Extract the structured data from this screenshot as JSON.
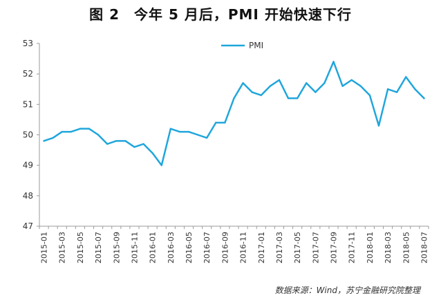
{
  "figure_title": "图 2　今年 5 月后，PMI 开始快速下行",
  "source_note": "数据来源：Wind，苏宁金融研究院整理",
  "colors": {
    "line": "#1fa6dc",
    "axis": "#999999",
    "text": "#333333"
  },
  "chart_data": {
    "type": "line",
    "title": "",
    "xlabel": "",
    "ylabel": "",
    "ylim": [
      47,
      53
    ],
    "yticks": [
      47,
      48,
      49,
      50,
      51,
      52,
      53
    ],
    "grid": false,
    "legend_position": "top-center",
    "x": [
      "2015-01",
      "2015-02",
      "2015-03",
      "2015-04",
      "2015-05",
      "2015-06",
      "2015-07",
      "2015-08",
      "2015-09",
      "2015-10",
      "2015-11",
      "2015-12",
      "2016-01",
      "2016-02",
      "2016-03",
      "2016-04",
      "2016-05",
      "2016-06",
      "2016-07",
      "2016-08",
      "2016-09",
      "2016-10",
      "2016-11",
      "2016-12",
      "2017-01",
      "2017-02",
      "2017-03",
      "2017-04",
      "2017-05",
      "2017-06",
      "2017-07",
      "2017-08",
      "2017-09",
      "2017-10",
      "2017-11",
      "2017-12",
      "2018-01",
      "2018-02",
      "2018-03",
      "2018-04",
      "2018-05",
      "2018-06",
      "2018-07"
    ],
    "tick_labels": [
      "2015-01",
      "2015-03",
      "2015-05",
      "2015-07",
      "2015-09",
      "2015-11",
      "2016-01",
      "2016-03",
      "2016-05",
      "2016-07",
      "2016-09",
      "2016-11",
      "2017-01",
      "2017-03",
      "2017-05",
      "2017-07",
      "2017-09",
      "2017-11",
      "2018-01",
      "2018-03",
      "2018-05",
      "2018-07"
    ],
    "series": [
      {
        "name": "PMI",
        "values": [
          49.8,
          49.9,
          50.1,
          50.1,
          50.2,
          50.2,
          50.0,
          49.7,
          49.8,
          49.8,
          49.6,
          49.7,
          49.4,
          49.0,
          50.2,
          50.1,
          50.1,
          50.0,
          49.9,
          50.4,
          50.4,
          51.2,
          51.7,
          51.4,
          51.3,
          51.6,
          51.8,
          51.2,
          51.2,
          51.7,
          51.4,
          51.7,
          52.4,
          51.6,
          51.8,
          51.6,
          51.3,
          50.3,
          51.5,
          51.4,
          51.9,
          51.5,
          51.2
        ]
      }
    ]
  }
}
